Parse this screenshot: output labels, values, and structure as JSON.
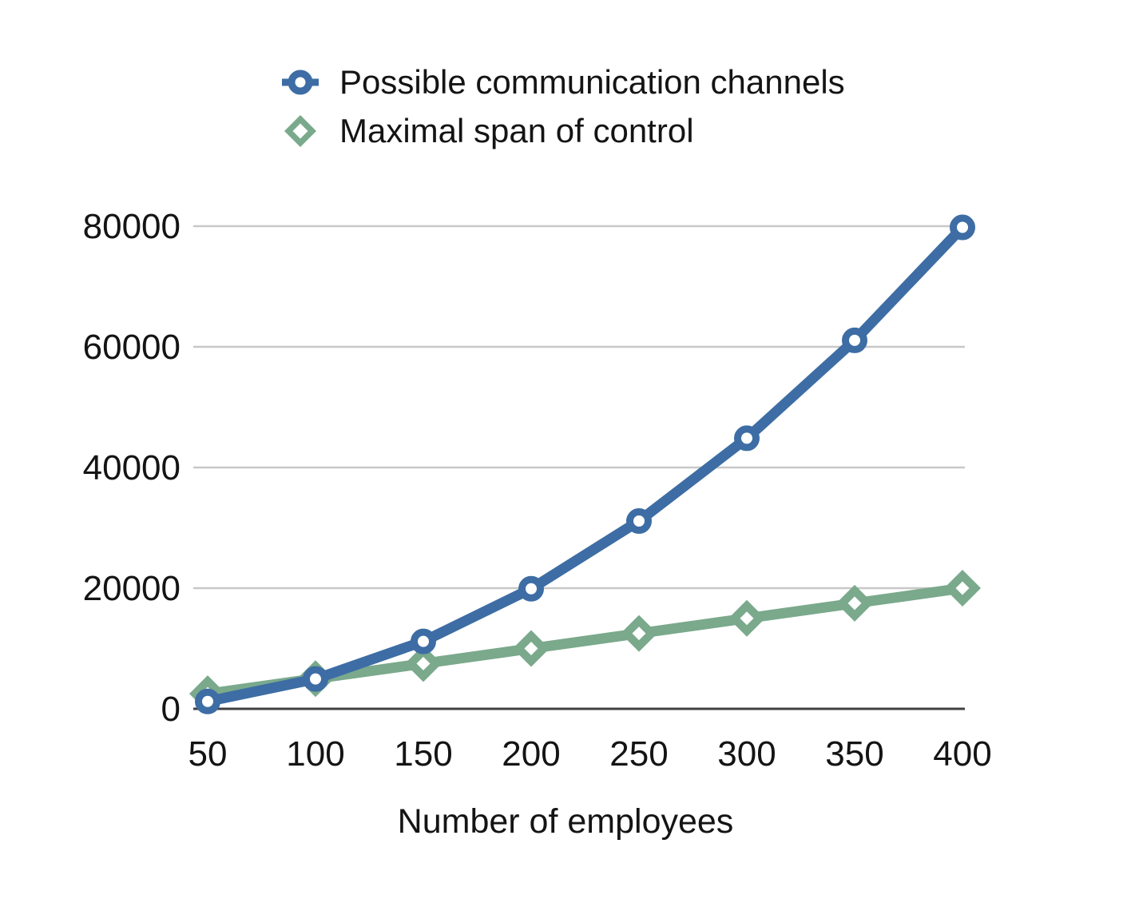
{
  "chart_data": {
    "type": "line",
    "x": [
      50,
      100,
      150,
      200,
      250,
      300,
      350,
      400
    ],
    "xticks": [
      50,
      100,
      150,
      200,
      250,
      300,
      350,
      400
    ],
    "yticks": [
      0,
      20000,
      40000,
      60000,
      80000
    ],
    "ylim": [
      0,
      80000
    ],
    "xlabel": "Number of employees",
    "ylabel": "",
    "title": "",
    "grid": "horizontal",
    "legend_position": "top-left",
    "series": [
      {
        "name": "Possible communication channels",
        "marker": "circle",
        "color": "#3d6da4",
        "values": [
          1225,
          4950,
          11175,
          19900,
          31125,
          44850,
          61075,
          79800
        ]
      },
      {
        "name": "Maximal span of control",
        "marker": "diamond",
        "color": "#7aa98c",
        "values": [
          2500,
          5000,
          7500,
          10000,
          12500,
          15000,
          17500,
          20000
        ]
      }
    ],
    "colors": {
      "grid": "#c8c8c8",
      "axis": "#404040",
      "text": "#141414",
      "background": "#ffffff"
    }
  }
}
